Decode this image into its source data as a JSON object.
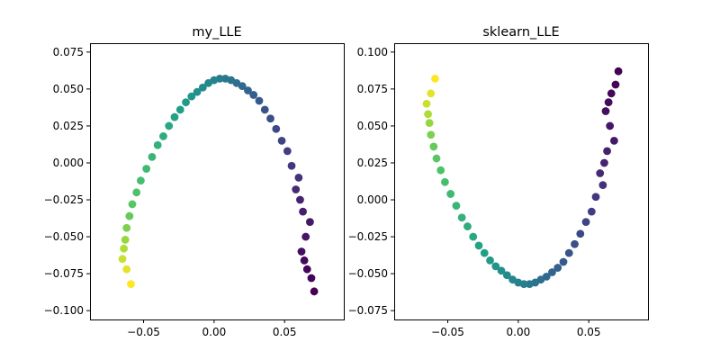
{
  "chart_data": [
    {
      "type": "scatter",
      "title": "my_LLE",
      "xlabel": "",
      "ylabel": "",
      "xlim": [
        -0.088,
        0.092
      ],
      "ylim": [
        -0.106,
        0.081
      ],
      "xticks": [
        -0.05,
        0.0,
        0.05
      ],
      "xtick_labels": [
        "−0.05",
        "0.00",
        "0.05"
      ],
      "yticks": [
        -0.1,
        -0.075,
        -0.05,
        -0.025,
        0.0,
        0.025,
        0.05,
        0.075
      ],
      "ytick_labels": [
        "−0.100",
        "−0.075",
        "−0.050",
        "−0.025",
        "0.000",
        "0.025",
        "0.050",
        "0.075"
      ],
      "grid": false,
      "colormap": "viridis",
      "colormap_stops": [
        "#440154",
        "#46327e",
        "#365c8d",
        "#277f8e",
        "#1fa187",
        "#4ac16d",
        "#a0da39",
        "#fde725"
      ],
      "series": [
        {
          "x": [
            0.071,
            0.069,
            0.066,
            0.064,
            0.062,
            0.065,
            0.068,
            0.063,
            0.061,
            0.058,
            0.06,
            0.055,
            0.052,
            0.048,
            0.044,
            0.04,
            0.036,
            0.032,
            0.028,
            0.024,
            0.02,
            0.016,
            0.012,
            0.008,
            0.004,
            0.0,
            -0.004,
            -0.008,
            -0.012,
            -0.016,
            -0.02,
            -0.024,
            -0.028,
            -0.032,
            -0.036,
            -0.04,
            -0.044,
            -0.048,
            -0.052,
            -0.055,
            -0.058,
            -0.06,
            -0.062,
            -0.063,
            -0.064,
            -0.065,
            -0.062,
            -0.059
          ],
          "y": [
            -0.087,
            -0.078,
            -0.072,
            -0.066,
            -0.06,
            -0.05,
            -0.04,
            -0.033,
            -0.025,
            -0.018,
            -0.01,
            -0.002,
            0.008,
            0.015,
            0.023,
            0.03,
            0.036,
            0.042,
            0.046,
            0.049,
            0.052,
            0.054,
            0.056,
            0.057,
            0.057,
            0.056,
            0.054,
            0.051,
            0.048,
            0.045,
            0.041,
            0.036,
            0.031,
            0.025,
            0.018,
            0.012,
            0.004,
            -0.004,
            -0.012,
            -0.02,
            -0.028,
            -0.036,
            -0.044,
            -0.052,
            -0.058,
            -0.065,
            -0.072,
            -0.082
          ],
          "color_value": [
            0.0,
            0.01,
            0.02,
            0.03,
            0.04,
            0.06,
            0.07,
            0.09,
            0.1,
            0.12,
            0.14,
            0.16,
            0.18,
            0.2,
            0.22,
            0.24,
            0.26,
            0.28,
            0.3,
            0.32,
            0.34,
            0.36,
            0.38,
            0.4,
            0.42,
            0.44,
            0.46,
            0.48,
            0.5,
            0.52,
            0.54,
            0.56,
            0.58,
            0.6,
            0.62,
            0.64,
            0.66,
            0.68,
            0.7,
            0.72,
            0.74,
            0.76,
            0.8,
            0.84,
            0.88,
            0.92,
            0.96,
            1.0
          ]
        }
      ]
    },
    {
      "type": "scatter",
      "title": "sklearn_LLE",
      "xlabel": "",
      "ylabel": "",
      "xlim": [
        -0.088,
        0.092
      ],
      "ylim": [
        -0.081,
        0.106
      ],
      "xticks": [
        -0.05,
        0.0,
        0.05
      ],
      "xtick_labels": [
        "−0.05",
        "0.00",
        "0.05"
      ],
      "yticks": [
        -0.075,
        -0.05,
        -0.025,
        0.0,
        0.025,
        0.05,
        0.075,
        0.1
      ],
      "ytick_labels": [
        "−0.075",
        "−0.050",
        "−0.025",
        "0.000",
        "0.025",
        "0.050",
        "0.075",
        "0.100"
      ],
      "grid": false,
      "colormap": "viridis",
      "colormap_stops": [
        "#440154",
        "#46327e",
        "#365c8d",
        "#277f8e",
        "#1fa187",
        "#4ac16d",
        "#a0da39",
        "#fde725"
      ],
      "series": [
        {
          "x": [
            0.071,
            0.069,
            0.066,
            0.064,
            0.062,
            0.065,
            0.068,
            0.063,
            0.061,
            0.058,
            0.06,
            0.055,
            0.052,
            0.048,
            0.044,
            0.04,
            0.036,
            0.032,
            0.028,
            0.024,
            0.02,
            0.016,
            0.012,
            0.008,
            0.004,
            0.0,
            -0.004,
            -0.008,
            -0.012,
            -0.016,
            -0.02,
            -0.024,
            -0.028,
            -0.032,
            -0.036,
            -0.04,
            -0.044,
            -0.048,
            -0.052,
            -0.055,
            -0.058,
            -0.06,
            -0.062,
            -0.063,
            -0.064,
            -0.065,
            -0.062,
            -0.059
          ],
          "y": [
            0.087,
            0.078,
            0.072,
            0.066,
            0.06,
            0.05,
            0.04,
            0.033,
            0.025,
            0.018,
            0.01,
            0.002,
            -0.008,
            -0.015,
            -0.023,
            -0.03,
            -0.036,
            -0.042,
            -0.046,
            -0.049,
            -0.052,
            -0.054,
            -0.056,
            -0.057,
            -0.057,
            -0.056,
            -0.054,
            -0.051,
            -0.048,
            -0.045,
            -0.041,
            -0.036,
            -0.031,
            -0.025,
            -0.018,
            -0.012,
            -0.004,
            0.004,
            0.012,
            0.02,
            0.028,
            0.036,
            0.044,
            0.052,
            0.058,
            0.065,
            0.072,
            0.082
          ],
          "color_value": [
            0.0,
            0.01,
            0.02,
            0.03,
            0.04,
            0.06,
            0.07,
            0.09,
            0.1,
            0.12,
            0.14,
            0.16,
            0.18,
            0.2,
            0.22,
            0.24,
            0.26,
            0.28,
            0.3,
            0.32,
            0.34,
            0.36,
            0.38,
            0.4,
            0.42,
            0.44,
            0.46,
            0.48,
            0.5,
            0.52,
            0.54,
            0.56,
            0.58,
            0.6,
            0.62,
            0.64,
            0.66,
            0.68,
            0.7,
            0.72,
            0.74,
            0.76,
            0.8,
            0.84,
            0.88,
            0.92,
            0.96,
            1.0
          ]
        }
      ]
    }
  ]
}
